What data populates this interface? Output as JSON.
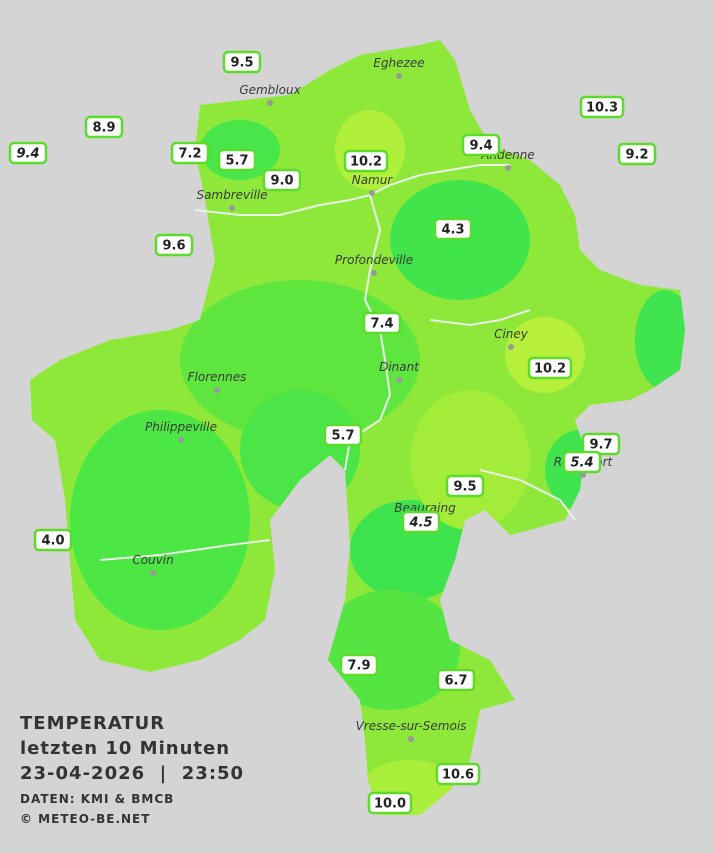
{
  "title": "TEMPERATUR",
  "subtitle": "letzten 10 Minuten",
  "datetime": "23-04-2026  |  23:50",
  "source": "DATEN: KMI & BMCB",
  "credit": "© METEO-BE.NET",
  "cities": [
    "Eghezee",
    "Gembloux",
    "Andenne",
    "Namur",
    "Sambreville",
    "Profondeville",
    "Ciney",
    "Dinant",
    "Florennes",
    "Philippeville",
    "Rochefort",
    "Beauraing",
    "Couvin",
    "Vresse-sur-Semois"
  ],
  "stations": [
    {
      "label": "9.5"
    },
    {
      "label": "8.9"
    },
    {
      "label": "9.4",
      "italic": true
    },
    {
      "label": "7.2"
    },
    {
      "label": "5.7"
    },
    {
      "label": "9.0"
    },
    {
      "label": "10.2"
    },
    {
      "label": "9.4"
    },
    {
      "label": "10.3"
    },
    {
      "label": "9.2"
    },
    {
      "label": "9.6"
    },
    {
      "label": "4.3"
    },
    {
      "label": "7.4"
    },
    {
      "label": "10.2"
    },
    {
      "label": "5.7"
    },
    {
      "label": "9.7"
    },
    {
      "label": "5.4",
      "italic": true
    },
    {
      "label": "9.5"
    },
    {
      "label": "4.5",
      "italic": true
    },
    {
      "label": "4.0"
    },
    {
      "label": "7.9"
    },
    {
      "label": "6.7"
    },
    {
      "label": "10.6"
    },
    {
      "label": "10.0"
    }
  ]
}
